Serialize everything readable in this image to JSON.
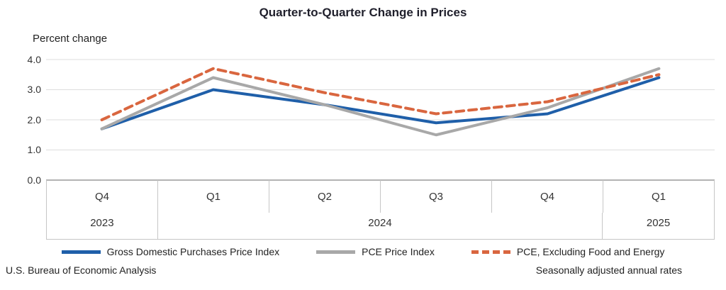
{
  "title": "Quarter-to-Quarter Change in Prices",
  "footer": {
    "left": "U.S. Bureau of Economic Analysis",
    "right": "Seasonally adjusted annual rates"
  },
  "chart_data": {
    "type": "line",
    "title": "Quarter-to-Quarter Change in Prices",
    "ylabel": "Percent change",
    "xlabel": "",
    "ylim": [
      0.0,
      4.0
    ],
    "yticks": [
      0.0,
      1.0,
      2.0,
      3.0,
      4.0
    ],
    "ytick_labels": [
      "0.0",
      "1.0",
      "2.0",
      "3.0",
      "4.0"
    ],
    "grid": true,
    "legend_position": "bottom",
    "categories": [
      "Q4",
      "Q1",
      "Q2",
      "Q3",
      "Q4",
      "Q1"
    ],
    "year_groups": [
      {
        "label": "2023",
        "span": 1
      },
      {
        "label": "2024",
        "span": 4
      },
      {
        "label": "2025",
        "span": 1
      }
    ],
    "series": [
      {
        "name": "Gross Domestic Purchases Price Index",
        "color": "#1f5fa9",
        "style": "solid",
        "values": [
          1.7,
          3.0,
          2.5,
          1.9,
          2.2,
          3.4
        ]
      },
      {
        "name": "PCE Price Index",
        "color": "#a8a8a8",
        "style": "solid",
        "values": [
          1.7,
          3.4,
          2.5,
          1.5,
          2.4,
          3.7
        ]
      },
      {
        "name": "PCE, Excluding Food and Energy",
        "color": "#d9663f",
        "style": "dashed",
        "values": [
          2.0,
          3.7,
          2.9,
          2.2,
          2.6,
          3.5
        ]
      }
    ]
  }
}
